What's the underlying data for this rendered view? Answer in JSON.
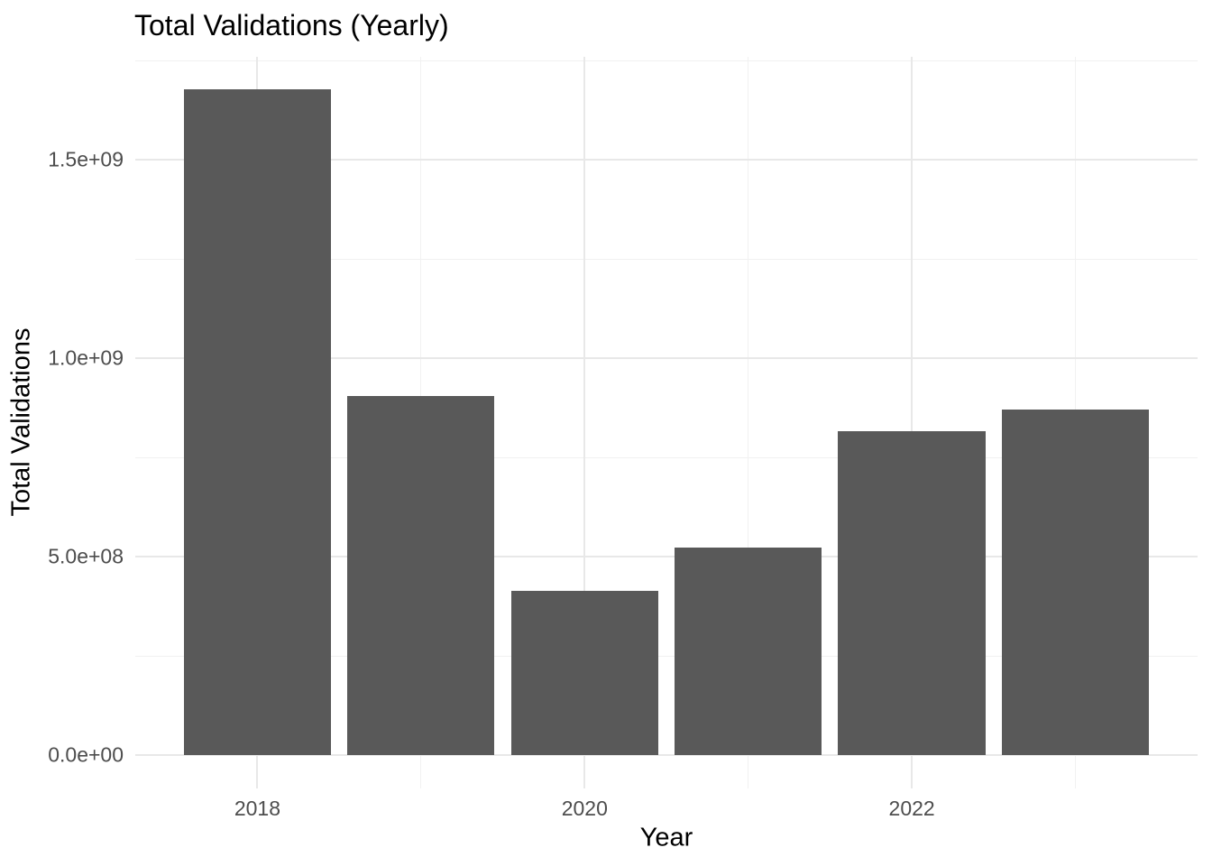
{
  "chart_data": {
    "type": "bar",
    "title": "Total Validations (Yearly)",
    "xlabel": "Year",
    "ylabel": "Total Validations",
    "categories": [
      2018,
      2019,
      2020,
      2021,
      2022,
      2023
    ],
    "values": [
      1677000000,
      905000000,
      414000000,
      523000000,
      816000000,
      870000000
    ],
    "series_name": "Total Validations",
    "bar_rel_width": 0.9,
    "x_major_ticks": [
      2018,
      2020,
      2022
    ],
    "x_tick_labels": [
      "2018",
      "2020",
      "2022"
    ],
    "x_minor_ticks": [
      2019,
      2021,
      2023
    ],
    "y_major_ticks": [
      0,
      500000000,
      1000000000,
      1500000000
    ],
    "y_tick_labels": [
      "0.0e+00",
      "5.0e+08",
      "1.0e+09",
      "1.5e+09"
    ],
    "y_minor_ticks": [
      250000000,
      750000000,
      1250000000,
      1750000000
    ],
    "xlim": [
      2017.2534,
      2023.7466
    ],
    "ylim": [
      -84100000,
      1759500000
    ],
    "grid": "major-and-minor",
    "legend_position": "none",
    "colors": {
      "bar_fill": "#595959",
      "grid_major": "#e8e8e8",
      "grid_minor": "#f1f1f1",
      "tick_text": "#4d4d4d",
      "title_text": "#000000",
      "background": "#ffffff"
    }
  }
}
